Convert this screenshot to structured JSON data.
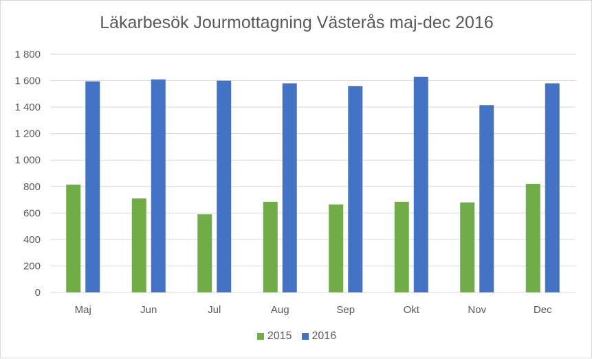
{
  "chart_data": {
    "type": "bar",
    "title": "Läkarbesök Jourmottagning Västerås maj-dec 2016",
    "categories": [
      "Maj",
      "Jun",
      "Jul",
      "Aug",
      "Sep",
      "Okt",
      "Nov",
      "Dec"
    ],
    "series": [
      {
        "name": "2015",
        "color": "#70ad47",
        "values": [
          815,
          710,
          590,
          685,
          665,
          685,
          680,
          820
        ]
      },
      {
        "name": "2016",
        "color": "#4472c4",
        "values": [
          1595,
          1610,
          1600,
          1580,
          1560,
          1630,
          1415,
          1580
        ]
      }
    ],
    "ylim": [
      0,
      1800
    ],
    "yticks": [
      0,
      200,
      400,
      600,
      800,
      1000,
      1200,
      1400,
      1600,
      1800
    ],
    "ytick_labels": [
      "0",
      "200",
      "400",
      "600",
      "800",
      "1 000",
      "1 200",
      "1 400",
      "1 600",
      "1 800"
    ],
    "xlabel": "",
    "ylabel": "",
    "grid": true,
    "legend_position": "bottom"
  }
}
